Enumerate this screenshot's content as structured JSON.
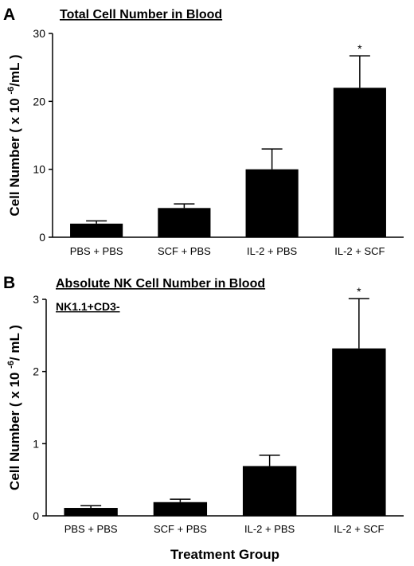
{
  "chart_data": [
    {
      "type": "bar",
      "panel": "A",
      "title": "Total Cell Number in Blood",
      "subtitle": "",
      "ylabel": "Cell Number ( x 10",
      "ylabel_exp": "-6",
      "ylabel_tail": "/mL )",
      "xlabel": "",
      "categories": [
        "PBS + PBS",
        "SCF + PBS",
        "IL-2 + PBS",
        "IL-2 + SCF"
      ],
      "values": [
        2.0,
        4.3,
        10.0,
        22.0
      ],
      "errors": [
        0.4,
        0.6,
        3.0,
        4.7
      ],
      "annotations": [
        "",
        "",
        "",
        "*"
      ],
      "ylim": [
        0,
        30
      ],
      "yticks": [
        0,
        10,
        20,
        30
      ],
      "grid": false
    },
    {
      "type": "bar",
      "panel": "B",
      "title": "Absolute NK Cell Number in Blood",
      "subtitle": "NK1.1+CD3-",
      "ylabel": "Cell Number ( x 10",
      "ylabel_exp": "-6",
      "ylabel_tail": "/ mL )",
      "xlabel": "Treatment Group",
      "categories": [
        "PBS + PBS",
        "SCF + PBS",
        "IL-2 + PBS",
        "IL-2 + SCF"
      ],
      "values": [
        0.11,
        0.19,
        0.69,
        2.32
      ],
      "errors": [
        0.03,
        0.04,
        0.15,
        0.69
      ],
      "annotations": [
        "",
        "",
        "",
        "*"
      ],
      "ylim": [
        0,
        3
      ],
      "yticks": [
        0,
        1,
        2,
        3
      ],
      "grid": false
    }
  ],
  "colors": {
    "bar": "#000000",
    "axis": "#000000",
    "background": "#ffffff"
  }
}
